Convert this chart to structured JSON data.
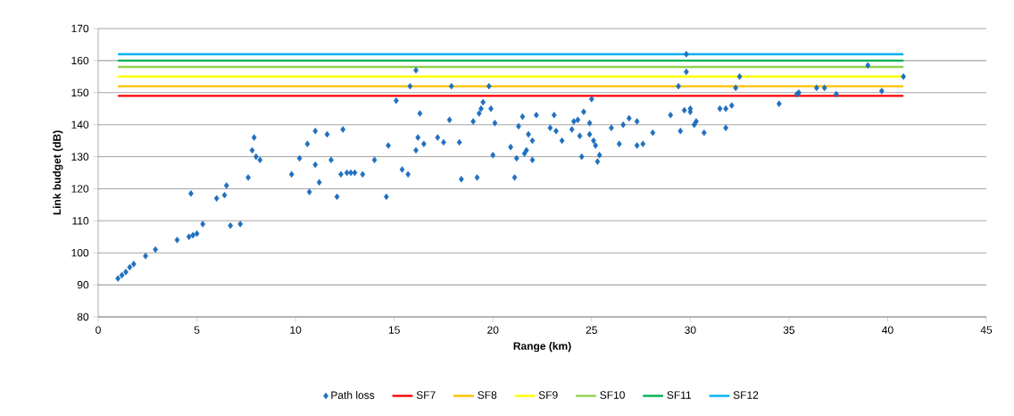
{
  "chart_data": {
    "type": "scatter",
    "xlabel": "Range (km)",
    "ylabel": "Link budget (dB)",
    "xlim": [
      0,
      45
    ],
    "ylim": [
      80,
      170
    ],
    "xticks": [
      0,
      5,
      10,
      15,
      20,
      25,
      30,
      35,
      40,
      45
    ],
    "yticks": [
      80,
      90,
      100,
      110,
      120,
      130,
      140,
      150,
      160,
      170
    ],
    "grid": "y",
    "legend": "bottom",
    "series": [
      {
        "name": "Path loss",
        "color": "#1f6fbf",
        "marker": "diamond",
        "x": [
          1.0,
          1.2,
          1.4,
          1.6,
          1.8,
          2.4,
          2.9,
          4.0,
          4.6,
          4.8,
          5.0,
          5.3,
          4.7,
          6.0,
          6.4,
          6.5,
          6.7,
          7.2,
          7.6,
          7.8,
          7.9,
          8.0,
          8.2,
          9.8,
          10.2,
          10.6,
          10.7,
          11.0,
          11.0,
          11.2,
          11.6,
          11.8,
          12.1,
          12.3,
          12.4,
          12.6,
          12.8,
          13.0,
          13.4,
          14.0,
          14.6,
          14.7,
          15.1,
          15.4,
          15.7,
          15.8,
          16.1,
          16.1,
          16.2,
          16.3,
          16.5,
          17.2,
          17.5,
          17.8,
          17.9,
          18.3,
          18.4,
          19.0,
          19.2,
          19.3,
          19.4,
          19.5,
          19.8,
          19.9,
          20.0,
          20.1,
          20.9,
          21.1,
          21.2,
          21.3,
          21.5,
          21.6,
          21.7,
          21.8,
          22.0,
          22.0,
          22.2,
          22.9,
          23.1,
          23.2,
          23.5,
          24.0,
          24.1,
          24.3,
          24.4,
          24.5,
          24.6,
          24.9,
          24.9,
          25.0,
          25.1,
          25.2,
          25.3,
          25.4,
          26.0,
          26.4,
          26.6,
          26.9,
          27.3,
          27.3,
          27.6,
          28.1,
          29.0,
          29.4,
          29.5,
          29.7,
          29.8,
          29.8,
          30.0,
          30.0,
          30.2,
          30.3,
          30.7,
          31.5,
          31.8,
          31.8,
          32.1,
          32.3,
          32.5,
          34.5,
          35.4,
          35.5,
          36.4,
          36.8,
          37.4,
          39.0,
          39.7,
          40.8
        ],
        "values": [
          92,
          93,
          94,
          95.5,
          96.5,
          99,
          101,
          104,
          105,
          105.5,
          106,
          109,
          118.5,
          117,
          118,
          121,
          108.5,
          109,
          123.5,
          132,
          136,
          130,
          129,
          124.5,
          129.5,
          134,
          119,
          127.5,
          138,
          122,
          137,
          129,
          117.5,
          124.5,
          138.5,
          125,
          125,
          125,
          124.5,
          129,
          117.5,
          133.5,
          147.5,
          126,
          124.5,
          152,
          132,
          157,
          136,
          143.5,
          134,
          136,
          134.5,
          141.5,
          152,
          134.5,
          123,
          141,
          123.5,
          143.5,
          145,
          147,
          152,
          145,
          130.5,
          140.5,
          133,
          123.5,
          129.5,
          139.5,
          142.5,
          131,
          132,
          137,
          135,
          129,
          143,
          139,
          143,
          138,
          135,
          138.5,
          141,
          141.5,
          136.5,
          130,
          144,
          140.5,
          137,
          148,
          135,
          133.5,
          128.5,
          130.5,
          139,
          134,
          140,
          142,
          141,
          133.5,
          134,
          137.5,
          143,
          152,
          138,
          144.5,
          162,
          156.5,
          145,
          144,
          140,
          141,
          137.5,
          145,
          145,
          139,
          146,
          151.5,
          155,
          146.5,
          149.5,
          150,
          151.5,
          151.5,
          149.5,
          158.5,
          150.5,
          155
        ]
      },
      {
        "name": "SF7",
        "type": "line",
        "color": "#ff0000",
        "x": [
          1,
          40.8
        ],
        "values": [
          149,
          149
        ]
      },
      {
        "name": "SF8",
        "type": "line",
        "color": "#ffc000",
        "x": [
          1,
          40.8
        ],
        "values": [
          152,
          152
        ]
      },
      {
        "name": "SF9",
        "type": "line",
        "color": "#ffff00",
        "x": [
          1,
          40.8
        ],
        "values": [
          155,
          155
        ]
      },
      {
        "name": "SF10",
        "type": "line",
        "color": "#92d050",
        "x": [
          1,
          40.8
        ],
        "values": [
          158,
          158
        ]
      },
      {
        "name": "SF11",
        "type": "line",
        "color": "#00b050",
        "x": [
          1,
          40.8
        ],
        "values": [
          160,
          160
        ]
      },
      {
        "name": "SF12",
        "type": "line",
        "color": "#00b0f0",
        "x": [
          1,
          40.8
        ],
        "values": [
          162,
          162
        ]
      }
    ]
  }
}
